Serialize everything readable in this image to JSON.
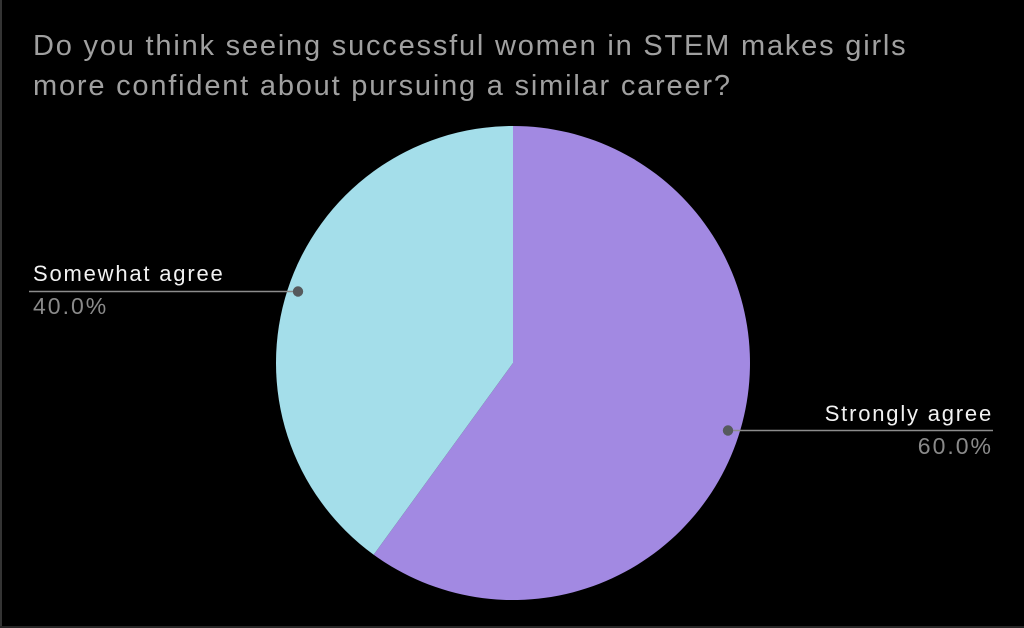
{
  "title": "Do you think seeing successful women in STEM makes girls more confident about pursuing a similar career?",
  "chart_data": {
    "type": "pie",
    "title": "Do you think seeing successful women in STEM makes girls more confident about pursuing a similar career?",
    "labels": [
      "Strongly agree",
      "Somewhat agree"
    ],
    "values": [
      60.0,
      40.0
    ],
    "value_labels": [
      "60.0%",
      "40.0%"
    ],
    "colors": [
      "#a289e2",
      "#a4deea"
    ],
    "start_angle_deg": 0,
    "direction": "clockwise",
    "label_position": "outside-with-leader-lines",
    "legend": "none",
    "background": "#000000",
    "style": {
      "title_color": "#a0a0a0",
      "label_color": "#f2f2f2",
      "percent_color": "#8a8a8a",
      "leader_line_color": "#8c8c8c",
      "leader_dot_color": "#565a5d"
    }
  }
}
